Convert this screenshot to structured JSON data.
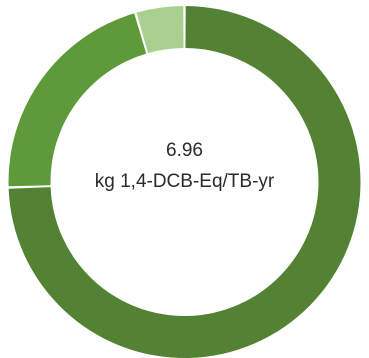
{
  "chart_data": {
    "type": "pie",
    "style": "donut",
    "center_value": "6.96",
    "center_unit": "kg 1,4-DCB-Eq/TB-yr",
    "slices": [
      {
        "value": 0.745,
        "color": "#548235"
      },
      {
        "value": 0.21,
        "color": "#5e9a3a"
      },
      {
        "value": 0.045,
        "color": "#a9d08e"
      }
    ],
    "start_angle_deg": 0,
    "direction": "clockwise",
    "grid": false,
    "legend": "none"
  }
}
